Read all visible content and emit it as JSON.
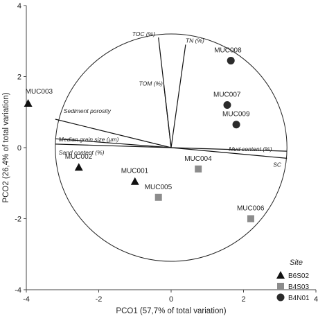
{
  "chart_data": {
    "type": "scatter",
    "title": "",
    "xlabel": "PCO1 (57,7% of total variation)",
    "ylabel": "PCO2 (26,4% of total variation)",
    "xlim": [
      -4,
      4
    ],
    "ylim": [
      -4,
      4
    ],
    "xticks": [
      -4,
      -2,
      0,
      2,
      4
    ],
    "yticks": [
      -4,
      -2,
      0,
      2,
      4
    ],
    "grid": false,
    "correlation_circle": {
      "center": [
        0,
        0
      ],
      "radius": 3.2
    },
    "legend": {
      "title": "Site",
      "position": "bottom-right",
      "entries": [
        {
          "name": "B6S02",
          "marker": "triangle",
          "color": "#111111"
        },
        {
          "name": "B4S03",
          "marker": "square",
          "color": "#8c8c8c"
        },
        {
          "name": "B4N01",
          "marker": "circle",
          "color": "#2b2b2b"
        }
      ]
    },
    "series": [
      {
        "name": "B6S02",
        "marker": "triangle",
        "color": "#111111",
        "points": [
          {
            "label": "MUC003",
            "x": -3.95,
            "y": 1.25
          },
          {
            "label": "MUC002",
            "x": -2.55,
            "y": -0.55
          },
          {
            "label": "MUC001",
            "x": -1.0,
            "y": -0.95
          }
        ]
      },
      {
        "name": "B4S03",
        "marker": "square",
        "color": "#8c8c8c",
        "points": [
          {
            "label": "MUC004",
            "x": 0.75,
            "y": -0.6
          },
          {
            "label": "MUC005",
            "x": -0.35,
            "y": -1.4
          },
          {
            "label": "MUC006",
            "x": 2.2,
            "y": -2.0
          }
        ]
      },
      {
        "name": "B4N01",
        "marker": "circle",
        "color": "#2b2b2b",
        "points": [
          {
            "label": "MUC008",
            "x": 1.65,
            "y": 2.45
          },
          {
            "label": "MUC007",
            "x": 1.55,
            "y": 1.2
          },
          {
            "label": "MUC009",
            "x": 1.8,
            "y": 0.65
          }
        ]
      }
    ],
    "vectors": [
      {
        "label": "TOC (%)",
        "x": -0.35,
        "y": 3.1
      },
      {
        "label": "TN (%)",
        "x": 0.4,
        "y": 2.9
      },
      {
        "label": "TOM (%)",
        "x": -0.2,
        "y": 1.75
      },
      {
        "label": "Sediment porosity",
        "x": -3.2,
        "y": 0.8
      },
      {
        "label": "Median grain size (µm)",
        "x": -3.2,
        "y": 0.25
      },
      {
        "label": "Sand content (%)",
        "x": -3.2,
        "y": 0.1
      },
      {
        "label": "Mud content (%)",
        "x": 3.2,
        "y": -0.1
      },
      {
        "label": "SC",
        "x": 3.2,
        "y": -0.3
      }
    ]
  }
}
